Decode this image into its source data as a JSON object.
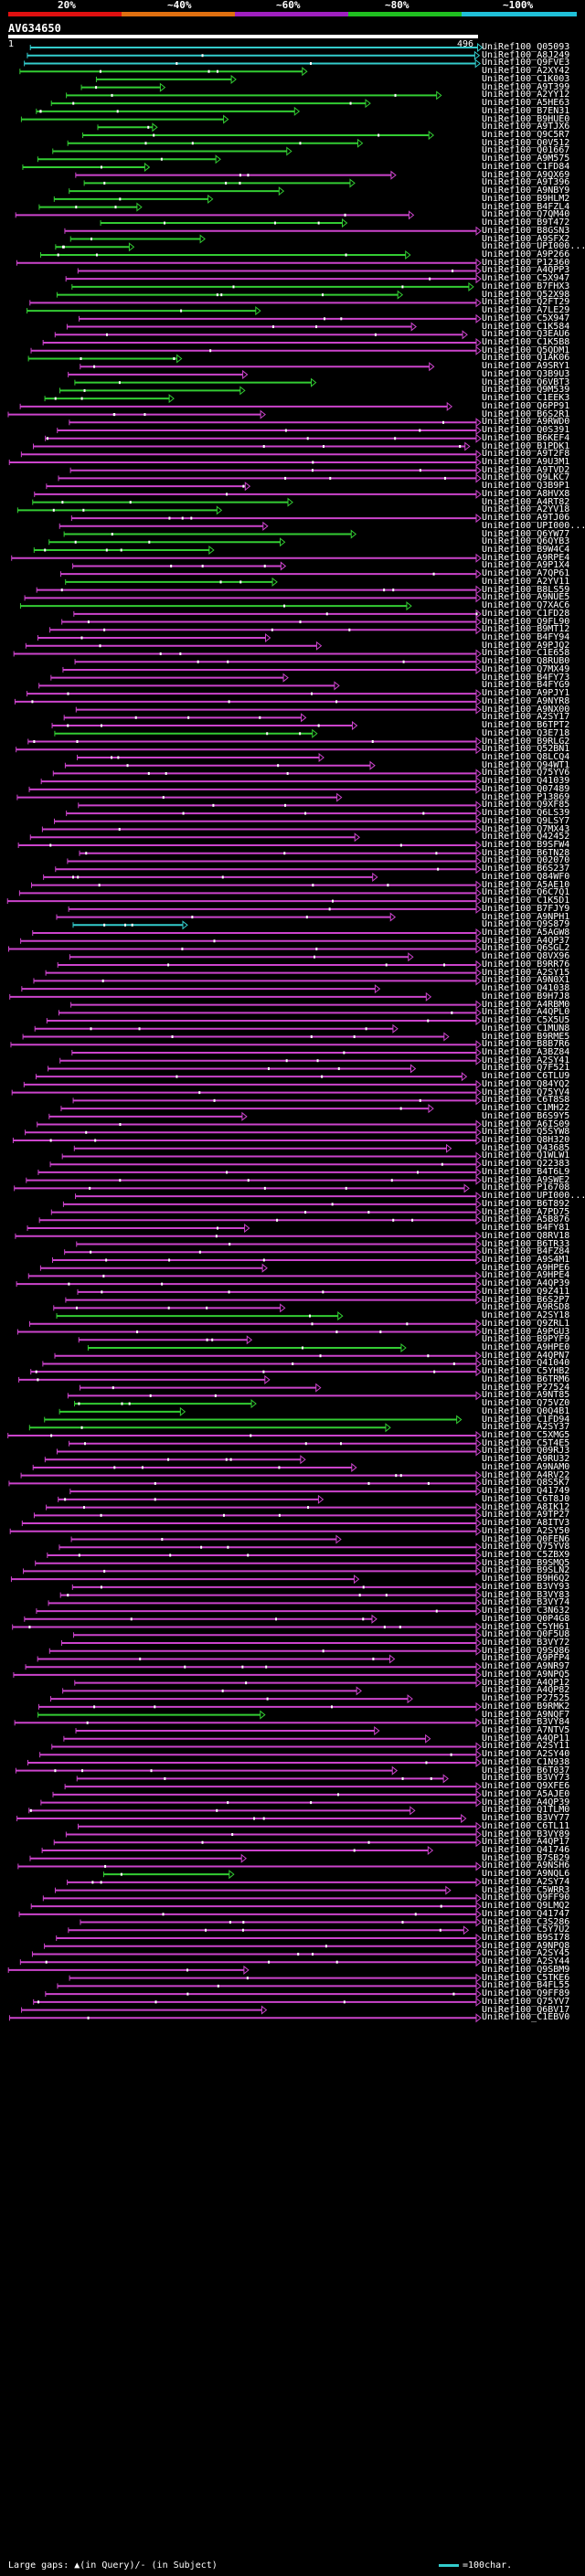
{
  "legend": {
    "labels": [
      "20%",
      "~40%",
      "~60%",
      "~80%",
      "~100%"
    ],
    "colors": [
      "#e01010",
      "#e07010",
      "#a020c0",
      "#20c020",
      "#20c0d8"
    ]
  },
  "query": {
    "id": "AV634650",
    "start": "1",
    "end": "496"
  },
  "hit_colors": {
    "cyan": "#33cccc",
    "green": "#33cc33",
    "magenta": "#cc44cc",
    "red": "#cc2222"
  },
  "hits": [
    {
      "label": "UniRef100_Q05093",
      "c": "cyan"
    },
    {
      "label": "UniRef100_A8J249",
      "c": "cyan"
    },
    {
      "label": "UniRef100_Q9FVE3",
      "c": "cyan"
    },
    {
      "label": "UniRef100_A2XY42",
      "c": "green"
    },
    {
      "label": "UniRef100_C1K003",
      "c": "green"
    },
    {
      "label": "UniRef100_A9T399",
      "c": "green"
    },
    {
      "label": "UniRef100_A2YY12",
      "c": "green"
    },
    {
      "label": "UniRef100_A5HE63",
      "c": "green"
    },
    {
      "label": "UniRef100_B7EN31",
      "c": "green"
    },
    {
      "label": "UniRef100_B9HUE0",
      "c": "green"
    },
    {
      "label": "UniRef100_A9TJX6",
      "c": "green"
    },
    {
      "label": "UniRef100_Q9C5R7",
      "c": "green"
    },
    {
      "label": "UniRef100_Q0V512",
      "c": "green"
    },
    {
      "label": "UniRef100_Q01667",
      "c": "green"
    },
    {
      "label": "UniRef100_A9M575",
      "c": "green"
    },
    {
      "label": "UniRef100_C1FD84",
      "c": "green"
    },
    {
      "label": "UniRef100_A9QX69",
      "c": "magenta"
    },
    {
      "label": "UniRef100_A9T396",
      "c": "green"
    },
    {
      "label": "UniRef100_A9NBY9",
      "c": "green"
    },
    {
      "label": "UniRef100_B9HLM2",
      "c": "green"
    },
    {
      "label": "UniRef100_B4FZL4",
      "c": "green"
    },
    {
      "label": "UniRef100_Q7QM40",
      "c": "magenta"
    },
    {
      "label": "UniRef100_B9T472",
      "c": "green"
    },
    {
      "label": "UniRef100_B8GSN3",
      "c": "magenta"
    },
    {
      "label": "UniRef100_A9SFX2",
      "c": "green"
    },
    {
      "label": "UniRef100_UPI000...",
      "c": "green"
    },
    {
      "label": "UniRef100_A9P266",
      "c": "green"
    },
    {
      "label": "UniRef100_P12360",
      "c": "magenta"
    },
    {
      "label": "UniRef100_A4QPP3",
      "c": "magenta"
    },
    {
      "label": "UniRef100_C5X947",
      "c": "magenta"
    },
    {
      "label": "UniRef100_B7FHX3",
      "c": "green"
    },
    {
      "label": "UniRef100_Q52X98",
      "c": "green"
    },
    {
      "label": "UniRef100_Q2FT29",
      "c": "magenta"
    },
    {
      "label": "UniRef100_A7LE29",
      "c": "green"
    },
    {
      "label": "UniRef100_C5X947",
      "c": "magenta"
    },
    {
      "label": "UniRef100_C1K584",
      "c": "magenta"
    },
    {
      "label": "UniRef100_Q3EAU6",
      "c": "magenta"
    },
    {
      "label": "UniRef100_C1K5B8",
      "c": "magenta"
    },
    {
      "label": "UniRef100_Q5QDM1",
      "c": "magenta"
    },
    {
      "label": "UniRef100_Q1AK06",
      "c": "green"
    },
    {
      "label": "UniRef100_A9SRY1",
      "c": "magenta"
    },
    {
      "label": "UniRef100_Q3B9U3",
      "c": "magenta"
    },
    {
      "label": "UniRef100_Q6VBT3",
      "c": "green"
    },
    {
      "label": "UniRef100_Q9M539",
      "c": "green"
    },
    {
      "label": "UniRef100_C1EEK3",
      "c": "green"
    },
    {
      "label": "UniRef100_Q6PP91",
      "c": "magenta"
    },
    {
      "label": "UniRef100_B6S2R1",
      "c": "magenta"
    },
    {
      "label": "UniRef100_A9RWD0",
      "c": "magenta"
    },
    {
      "label": "UniRef100_Q0S391",
      "c": "magenta"
    },
    {
      "label": "UniRef100_B6KEF4",
      "c": "magenta"
    },
    {
      "label": "UniRef100_B1PDK1",
      "c": "magenta"
    },
    {
      "label": "UniRef100_A9T2F8",
      "c": "magenta"
    },
    {
      "label": "UniRef100_A9U3M1",
      "c": "magenta"
    },
    {
      "label": "UniRef100_A9TVD2",
      "c": "magenta"
    },
    {
      "label": "UniRef100_Q9LKC7",
      "c": "magenta"
    },
    {
      "label": "UniRef100_Q3B9P1",
      "c": "magenta"
    },
    {
      "label": "UniRef100_A8HVX8",
      "c": "magenta"
    },
    {
      "label": "UniRef100_A4RT82",
      "c": "green"
    },
    {
      "label": "UniRef100_A2YV18",
      "c": "green"
    },
    {
      "label": "UniRef100_A9TJ06",
      "c": "magenta"
    },
    {
      "label": "UniRef100_UPI000...",
      "c": "magenta"
    },
    {
      "label": "UniRef100_Q6YW77",
      "c": "green"
    },
    {
      "label": "UniRef100_Q6QYB3",
      "c": "green"
    },
    {
      "label": "UniRef100_B9W4C4",
      "c": "green"
    },
    {
      "label": "UniRef100_A9RPE4",
      "c": "magenta"
    },
    {
      "label": "UniRef100_A9P1X4",
      "c": "magenta"
    },
    {
      "label": "UniRef100_A7QP61",
      "c": "magenta"
    },
    {
      "label": "UniRef100_A2YV11",
      "c": "green"
    },
    {
      "label": "UniRef100_B8LS59",
      "c": "magenta"
    },
    {
      "label": "UniRef100_A9NUE5",
      "c": "magenta"
    },
    {
      "label": "UniRef100_Q7XAC6",
      "c": "green"
    },
    {
      "label": "UniRef100_C1FD28",
      "c": "magenta"
    },
    {
      "label": "UniRef100_Q9FL90",
      "c": "magenta"
    },
    {
      "label": "UniRef100_B9MT12",
      "c": "magenta"
    },
    {
      "label": "UniRef100_B4FY94",
      "c": "magenta"
    },
    {
      "label": "UniRef100_A9PJQ2",
      "c": "magenta"
    },
    {
      "label": "UniRef100_C1E658",
      "c": "magenta"
    },
    {
      "label": "UniRef100_Q8RUB0",
      "c": "magenta"
    },
    {
      "label": "UniRef100_Q7MX49",
      "c": "magenta"
    },
    {
      "label": "UniRef100_B4FY73",
      "c": "magenta"
    },
    {
      "label": "UniRef100_B4FYG9",
      "c": "magenta"
    },
    {
      "label": "UniRef100_A9PJY1",
      "c": "magenta"
    },
    {
      "label": "UniRef100_A9NYR8",
      "c": "magenta"
    },
    {
      "label": "UniRef100_A9NX00",
      "c": "magenta"
    },
    {
      "label": "UniRef100_A2SY17",
      "c": "magenta"
    },
    {
      "label": "UniRef100_B6TPT2",
      "c": "magenta"
    },
    {
      "label": "UniRef100_Q3E718",
      "c": "green"
    },
    {
      "label": "UniRef100_B9RLG2",
      "c": "magenta"
    },
    {
      "label": "UniRef100_Q52BN1",
      "c": "magenta"
    },
    {
      "label": "UniRef100_Q8LCQ4",
      "c": "magenta"
    },
    {
      "label": "UniRef100_Q94WT1",
      "c": "magenta"
    },
    {
      "label": "UniRef100_Q75YV6",
      "c": "magenta"
    },
    {
      "label": "UniRef100_Q41039",
      "c": "magenta"
    },
    {
      "label": "UniRef100_Q07489",
      "c": "magenta"
    },
    {
      "label": "UniRef100_P13869",
      "c": "magenta"
    },
    {
      "label": "UniRef100_Q9XF85",
      "c": "magenta"
    },
    {
      "label": "UniRef100_Q6LS39",
      "c": "magenta"
    },
    {
      "label": "UniRef100_Q9LSY7",
      "c": "magenta"
    },
    {
      "label": "UniRef100_Q7MX43",
      "c": "magenta"
    },
    {
      "label": "UniRef100_Q42452",
      "c": "magenta"
    },
    {
      "label": "UniRef100_B9SFW4",
      "c": "magenta"
    },
    {
      "label": "UniRef100_B6TN28",
      "c": "magenta"
    },
    {
      "label": "UniRef100_Q02070",
      "c": "magenta"
    },
    {
      "label": "UniRef100_B6S237",
      "c": "magenta"
    },
    {
      "label": "UniRef100_Q84WF0",
      "c": "magenta"
    },
    {
      "label": "UniRef100_A5AE10",
      "c": "magenta"
    },
    {
      "label": "UniRef100_Q6C7Q1",
      "c": "magenta"
    },
    {
      "label": "UniRef100_C1K5D1",
      "c": "magenta"
    },
    {
      "label": "UniRef100_B7FJY9",
      "c": "magenta"
    },
    {
      "label": "UniRef100_A9NPH1",
      "c": "magenta"
    },
    {
      "label": "UniRef100_Q9S879",
      "c": "cyan"
    },
    {
      "label": "UniRef100_A5AGW8",
      "c": "magenta"
    },
    {
      "label": "UniRef100_A4QP37",
      "c": "magenta"
    },
    {
      "label": "UniRef100_Q6SGL2",
      "c": "magenta"
    },
    {
      "label": "UniRef100_Q8VX96",
      "c": "magenta"
    },
    {
      "label": "UniRef100_B9RR76",
      "c": "magenta"
    },
    {
      "label": "UniRef100_A2SY15",
      "c": "magenta"
    },
    {
      "label": "UniRef100_A9N0X1",
      "c": "magenta"
    },
    {
      "label": "UniRef100_Q41038",
      "c": "magenta"
    },
    {
      "label": "UniRef100_B9H7J8",
      "c": "magenta"
    },
    {
      "label": "UniRef100_A4RBM0",
      "c": "magenta"
    },
    {
      "label": "UniRef100_A4QPL0",
      "c": "magenta"
    },
    {
      "label": "UniRef100_C5X5U5",
      "c": "magenta"
    },
    {
      "label": "UniRef100_C1MUN8",
      "c": "magenta"
    },
    {
      "label": "UniRef100_B9RME5",
      "c": "magenta"
    },
    {
      "label": "UniRef100_B8B7R6",
      "c": "magenta"
    },
    {
      "label": "UniRef100_A3BZ84",
      "c": "magenta"
    },
    {
      "label": "UniRef100_A2SY41",
      "c": "magenta"
    },
    {
      "label": "UniRef100_Q7F521",
      "c": "magenta"
    },
    {
      "label": "UniRef100_C6TLU9",
      "c": "magenta"
    },
    {
      "label": "UniRef100_Q84YQ2",
      "c": "magenta"
    },
    {
      "label": "UniRef100_Q75YV4",
      "c": "magenta"
    },
    {
      "label": "UniRef100_C6T8S8",
      "c": "magenta"
    },
    {
      "label": "UniRef100_C1MH22",
      "c": "magenta"
    },
    {
      "label": "UniRef100_B6S9Y5",
      "c": "magenta"
    },
    {
      "label": "UniRef100_A6IS09",
      "c": "magenta"
    },
    {
      "label": "UniRef100_Q5SYW8",
      "c": "magenta"
    },
    {
      "label": "UniRef100_Q8H320",
      "c": "magenta"
    },
    {
      "label": "UniRef100_Q43685",
      "c": "magenta"
    },
    {
      "label": "UniRef100_Q1WLW1",
      "c": "magenta"
    },
    {
      "label": "UniRef100_Q22383",
      "c": "magenta"
    },
    {
      "label": "UniRef100_B4T6L9",
      "c": "magenta"
    },
    {
      "label": "UniRef100_A9SWE2",
      "c": "magenta"
    },
    {
      "label": "UniRef100_P16708",
      "c": "magenta"
    },
    {
      "label": "UniRef100_UPI000...",
      "c": "magenta"
    },
    {
      "label": "UniRef100_B6T892",
      "c": "magenta"
    },
    {
      "label": "UniRef100_A7PD75",
      "c": "magenta"
    },
    {
      "label": "UniRef100_A5B876",
      "c": "magenta"
    },
    {
      "label": "UniRef100_B4FY81",
      "c": "magenta"
    },
    {
      "label": "UniRef100_Q8RV18",
      "c": "magenta"
    },
    {
      "label": "UniRef100_B6TR33",
      "c": "magenta"
    },
    {
      "label": "UniRef100_B4FZ84",
      "c": "magenta"
    },
    {
      "label": "UniRef100_A9S4M1",
      "c": "magenta"
    },
    {
      "label": "UniRef100_A9HPE6",
      "c": "magenta"
    },
    {
      "label": "UniRef100_A9HPE4",
      "c": "magenta"
    },
    {
      "label": "UniRef100_A4QP39",
      "c": "magenta"
    },
    {
      "label": "UniRef100_Q9Z411",
      "c": "magenta"
    },
    {
      "label": "UniRef100_B6S2P7",
      "c": "magenta"
    },
    {
      "label": "UniRef100_A9RSD8",
      "c": "magenta"
    },
    {
      "label": "UniRef100_A2SY18",
      "c": "green"
    },
    {
      "label": "UniRef100_Q9ZRL1",
      "c": "magenta"
    },
    {
      "label": "UniRef100_A9PGU3",
      "c": "magenta"
    },
    {
      "label": "UniRef100_B9PYF9",
      "c": "magenta"
    },
    {
      "label": "UniRef100_A9HPE0",
      "c": "green"
    },
    {
      "label": "UniRef100_A4QPN7",
      "c": "magenta"
    },
    {
      "label": "UniRef100_Q41040",
      "c": "magenta"
    },
    {
      "label": "UniRef100_C5YHB2",
      "c": "magenta"
    },
    {
      "label": "UniRef100_B6TRM6",
      "c": "magenta"
    },
    {
      "label": "UniRef100_P27524",
      "c": "magenta"
    },
    {
      "label": "UniRef100_A9NT85",
      "c": "magenta"
    },
    {
      "label": "UniRef100_Q75VZ0",
      "c": "green"
    },
    {
      "label": "UniRef100_Q0Q4B1",
      "c": "green"
    },
    {
      "label": "UniRef100_C1FD94",
      "c": "green"
    },
    {
      "label": "UniRef100_A2SY37",
      "c": "green"
    },
    {
      "label": "UniRef100_C5XMG5",
      "c": "magenta"
    },
    {
      "label": "UniRef100_C5T4E5",
      "c": "magenta"
    },
    {
      "label": "UniRef100_Q09RJ3",
      "c": "magenta"
    },
    {
      "label": "UniRef100_A9RU32",
      "c": "magenta"
    },
    {
      "label": "UniRef100_A9NAM0",
      "c": "magenta"
    },
    {
      "label": "UniRef100_A4RV22",
      "c": "magenta"
    },
    {
      "label": "UniRef100_Q8S5K7",
      "c": "magenta"
    },
    {
      "label": "UniRef100_Q41749",
      "c": "magenta"
    },
    {
      "label": "UniRef100_C6T8J0",
      "c": "magenta"
    },
    {
      "label": "UniRef100_A8IK12",
      "c": "magenta"
    },
    {
      "label": "UniRef100_A9TP27",
      "c": "magenta"
    },
    {
      "label": "UniRef100_A8ITV3",
      "c": "magenta"
    },
    {
      "label": "UniRef100_A2SY50",
      "c": "magenta"
    },
    {
      "label": "UniRef100_Q0FEN6",
      "c": "magenta"
    },
    {
      "label": "UniRef100_Q75YV8",
      "c": "magenta"
    },
    {
      "label": "UniRef100_C5ZBX9",
      "c": "magenta"
    },
    {
      "label": "UniRef100_B9SMQ5",
      "c": "magenta"
    },
    {
      "label": "UniRef100_B9SLN2",
      "c": "magenta"
    },
    {
      "label": "UniRef100_B9H6Q2",
      "c": "magenta"
    },
    {
      "label": "UniRef100_B3VY93",
      "c": "magenta"
    },
    {
      "label": "UniRef100_B3VY83",
      "c": "magenta"
    },
    {
      "label": "UniRef100_B3VY74",
      "c": "magenta"
    },
    {
      "label": "UniRef100_C3N632",
      "c": "magenta"
    },
    {
      "label": "UniRef100_Q0P4G8",
      "c": "magenta"
    },
    {
      "label": "UniRef100_C5YH61",
      "c": "magenta"
    },
    {
      "label": "UniRef100_Q0F5U8",
      "c": "magenta"
    },
    {
      "label": "UniRef100_B3VY72",
      "c": "magenta"
    },
    {
      "label": "UniRef100_Q9SQ86",
      "c": "magenta"
    },
    {
      "label": "UniRef100_A9PFP4",
      "c": "magenta"
    },
    {
      "label": "UniRef100_A9NR97",
      "c": "magenta"
    },
    {
      "label": "UniRef100_A9NPQ5",
      "c": "magenta"
    },
    {
      "label": "UniRef100_A4QP12",
      "c": "magenta"
    },
    {
      "label": "UniRef100_A4QP82",
      "c": "magenta"
    },
    {
      "label": "UniRef100_P27525",
      "c": "magenta"
    },
    {
      "label": "UniRef100_B9RMK2",
      "c": "magenta"
    },
    {
      "label": "UniRef100_A9NQF7",
      "c": "green"
    },
    {
      "label": "UniRef100_B3VY84",
      "c": "magenta"
    },
    {
      "label": "UniRef100_A7NTV5",
      "c": "magenta"
    },
    {
      "label": "UniRef100_A4QP11",
      "c": "magenta"
    },
    {
      "label": "UniRef100_A2SY11",
      "c": "magenta"
    },
    {
      "label": "UniRef100_A2SY40",
      "c": "magenta"
    },
    {
      "label": "UniRef100_C1N938",
      "c": "magenta"
    },
    {
      "label": "UniRef100_B6T037",
      "c": "magenta"
    },
    {
      "label": "UniRef100_B3VY73",
      "c": "magenta"
    },
    {
      "label": "UniRef100_Q9XFE6",
      "c": "magenta"
    },
    {
      "label": "UniRef100_A5AJE0",
      "c": "magenta"
    },
    {
      "label": "UniRef100_A4QP39",
      "c": "magenta"
    },
    {
      "label": "UniRef100_Q1TLM0",
      "c": "magenta"
    },
    {
      "label": "UniRef100_B3VY77",
      "c": "magenta"
    },
    {
      "label": "UniRef100_C6TL11",
      "c": "magenta"
    },
    {
      "label": "UniRef100_B3VY89",
      "c": "magenta"
    },
    {
      "label": "UniRef100_A4QP17",
      "c": "magenta"
    },
    {
      "label": "UniRef100_Q41746",
      "c": "magenta"
    },
    {
      "label": "UniRef100_B7SB29",
      "c": "magenta"
    },
    {
      "label": "UniRef100_A9NSH6",
      "c": "magenta"
    },
    {
      "label": "UniRef100_A9NQL6",
      "c": "green"
    },
    {
      "label": "UniRef100_A2SY74",
      "c": "magenta"
    },
    {
      "label": "UniRef100_C5WRR3",
      "c": "magenta"
    },
    {
      "label": "UniRef100_Q9FF90",
      "c": "magenta"
    },
    {
      "label": "UniRef100_Q9LMQ2",
      "c": "magenta"
    },
    {
      "label": "UniRef100_Q41747",
      "c": "magenta"
    },
    {
      "label": "UniRef100_C3S286",
      "c": "magenta"
    },
    {
      "label": "UniRef100_C5Y7U2",
      "c": "magenta"
    },
    {
      "label": "UniRef100_B9SI78",
      "c": "magenta"
    },
    {
      "label": "UniRef100_A9NPQ8",
      "c": "magenta"
    },
    {
      "label": "UniRef100_A2SY45",
      "c": "magenta"
    },
    {
      "label": "UniRef100_A2SY44",
      "c": "magenta"
    },
    {
      "label": "UniRef100_Q9SBM9",
      "c": "magenta"
    },
    {
      "label": "UniRef100_C5TKE6",
      "c": "magenta"
    },
    {
      "label": "UniRef100_B4FL55",
      "c": "magenta"
    },
    {
      "label": "UniRef100_Q9FF89",
      "c": "magenta"
    },
    {
      "label": "UniRef100_Q75YV7",
      "c": "magenta"
    },
    {
      "label": "UniRef100_Q6BV17",
      "c": "magenta"
    },
    {
      "label": "UniRef100_C1EBV0",
      "c": "magenta"
    }
  ],
  "footer": {
    "gaps_text": "Large gaps: ▲(in Query)/- (in Subject)",
    "key_text": "=100char."
  }
}
